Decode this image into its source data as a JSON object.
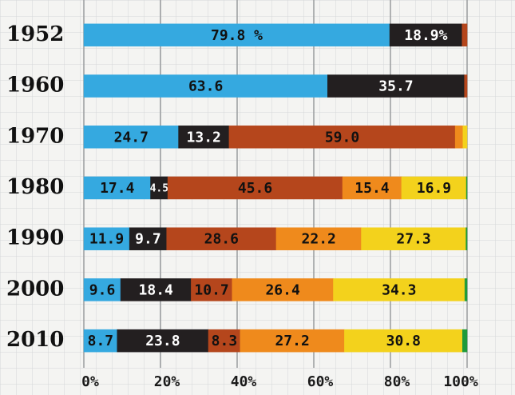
{
  "chart_data": {
    "type": "stacked-bar-horizontal",
    "categories": [
      "1952",
      "1960",
      "1970",
      "1980",
      "1990",
      "2000",
      "2010"
    ],
    "series": [
      {
        "color": "#35a9e0",
        "values": [
          79.8,
          63.6,
          24.7,
          17.4,
          11.9,
          9.6,
          8.7
        ],
        "value_labels": [
          "79.8 %",
          "63.6",
          "24.7",
          "17.4",
          "11.9",
          "9.6",
          "8.7"
        ]
      },
      {
        "color": "#231f20",
        "values": [
          18.9,
          35.7,
          13.2,
          4.5,
          9.7,
          18.4,
          23.8
        ],
        "value_labels": [
          "18.9%",
          "35.7",
          "13.2",
          "4.5",
          "9.7",
          "18.4",
          "23.8"
        ]
      },
      {
        "color": "#b5461c",
        "values": [
          1.3,
          0.7,
          59.0,
          45.6,
          28.6,
          10.7,
          8.3
        ],
        "value_labels": [
          null,
          null,
          "59.0",
          "45.6",
          "28.6",
          "10.7",
          "8.3"
        ]
      },
      {
        "color": "#ef8a1c",
        "values": [
          0,
          0,
          2.0,
          15.4,
          22.2,
          26.4,
          27.2
        ],
        "value_labels": [
          null,
          null,
          null,
          "15.4",
          "22.2",
          "26.4",
          "27.2"
        ]
      },
      {
        "color": "#f3d21c",
        "values": [
          0,
          0,
          1.1,
          16.9,
          27.3,
          34.3,
          30.8
        ],
        "value_labels": [
          null,
          null,
          null,
          "16.9",
          "27.3",
          "34.3",
          "30.8"
        ]
      },
      {
        "color": "#1f9a3a",
        "values": [
          0,
          0,
          0,
          0.2,
          0.3,
          0.6,
          1.2
        ],
        "value_labels": [
          null,
          null,
          null,
          null,
          null,
          null,
          null
        ]
      }
    ],
    "xlim": [
      0,
      100
    ],
    "xticks": [
      {
        "value": 0,
        "label": "0%"
      },
      {
        "value": 20,
        "label": "20%"
      },
      {
        "value": 40,
        "label": "40%"
      },
      {
        "value": 60,
        "label": "60%"
      },
      {
        "value": 80,
        "label": "80%"
      },
      {
        "value": 100,
        "label": "100%"
      }
    ],
    "grid": true
  }
}
